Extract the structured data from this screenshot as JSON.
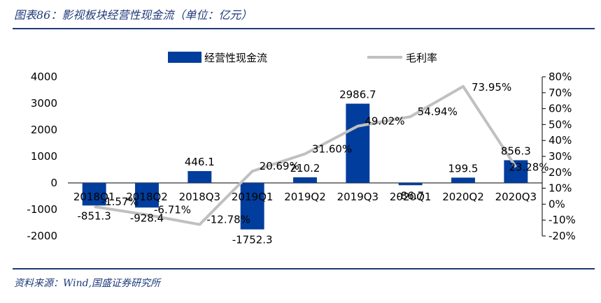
{
  "header": {
    "title": "图表86：影视板块经营性现金流（单位：亿元）"
  },
  "footer": {
    "source": "资料来源：Wind,国盛证券研究所"
  },
  "chart_data": {
    "type": "bar",
    "categories": [
      "2018Q1",
      "2018Q2",
      "2018Q3",
      "2019Q1",
      "2019Q2",
      "2019Q3",
      "2020Q1",
      "2020Q2",
      "2020Q3"
    ],
    "series": [
      {
        "name": "经营性现金流",
        "kind": "bar",
        "axis": "left",
        "values": [
          -851.3,
          -928.4,
          446.1,
          -1752.3,
          210.2,
          2986.7,
          -86.7,
          199.5,
          856.3
        ],
        "labels": [
          "-851.3",
          "-928.4",
          "446.1",
          "-1752.3",
          "210.2",
          "2986.7",
          "-86.7",
          "199.5",
          "856.3"
        ]
      },
      {
        "name": "毛利率",
        "kind": "line",
        "axis": "right",
        "values": [
          -1.57,
          -6.71,
          -12.78,
          20.69,
          31.6,
          49.02,
          54.94,
          73.95,
          23.28
        ],
        "labels": [
          "-1.57%",
          "-6.71%",
          "-12.78%",
          "20.69%",
          "31.60%",
          "49.02%",
          "54.94%",
          "73.95%",
          "23.28%"
        ]
      }
    ],
    "y_left": {
      "ylim": [
        -2000,
        4000
      ],
      "ticks": [
        "4000",
        "3000",
        "2000",
        "1000",
        "0",
        "-1000",
        "-2000"
      ]
    },
    "y_right": {
      "ylim": [
        -20,
        80
      ],
      "ticks": [
        "80%",
        "70%",
        "60%",
        "50%",
        "40%",
        "30%",
        "20%",
        "10%",
        "0%",
        "-10%",
        "-20%"
      ]
    },
    "legend_position": "top",
    "grid": false,
    "colors": {
      "bar": "#003d9c",
      "line": "#c0c0c0",
      "text": "#000000",
      "accent": "#1f3a7a"
    }
  }
}
